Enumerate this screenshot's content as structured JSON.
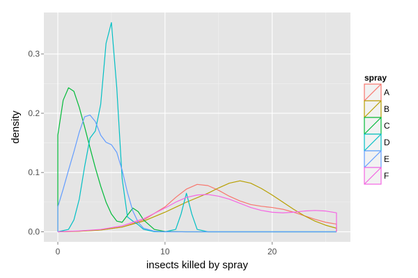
{
  "chart_data": {
    "type": "line",
    "subtype": "density",
    "xlabel": "insects killed by spray",
    "ylabel": "density",
    "xlim": [
      -1.3,
      27.3
    ],
    "ylim": [
      -0.017,
      0.37
    ],
    "x_ticks": [
      0,
      10,
      20
    ],
    "x_tick_labels": [
      "0",
      "10",
      "20"
    ],
    "y_ticks": [
      0.0,
      0.1,
      0.2,
      0.3
    ],
    "y_tick_labels": [
      "0.0",
      "0.1",
      "0.2",
      "0.3"
    ],
    "grid": true,
    "background": "#e5e5e5",
    "legend": {
      "title": "spray",
      "position": "right"
    },
    "series": [
      {
        "name": "A",
        "color": "#F8766D",
        "x": [
          0,
          2,
          4,
          6,
          8,
          10,
          11,
          12,
          13,
          14,
          15,
          16,
          17,
          18,
          19,
          20,
          21,
          22,
          23,
          24,
          25,
          26,
          26
        ],
        "y": [
          0,
          0.0012,
          0.003,
          0.008,
          0.02,
          0.042,
          0.058,
          0.072,
          0.08,
          0.078,
          0.07,
          0.06,
          0.052,
          0.046,
          0.043,
          0.041,
          0.038,
          0.033,
          0.027,
          0.021,
          0.016,
          0.013,
          0
        ]
      },
      {
        "name": "B",
        "color": "#B79F00",
        "x": [
          0,
          2,
          4,
          6,
          8,
          10,
          12,
          14,
          15,
          16,
          17,
          18,
          19,
          20,
          21,
          22,
          23,
          24,
          25,
          26,
          26
        ],
        "y": [
          0,
          0.0008,
          0.003,
          0.008,
          0.018,
          0.033,
          0.05,
          0.065,
          0.074,
          0.082,
          0.086,
          0.082,
          0.073,
          0.062,
          0.05,
          0.038,
          0.027,
          0.018,
          0.011,
          0.006,
          0
        ]
      },
      {
        "name": "C",
        "color": "#00BA38",
        "x": [
          0,
          0,
          0.5,
          1,
          1.5,
          2,
          2.5,
          3,
          3.5,
          4,
          4.5,
          5,
          5.5,
          6,
          6.5,
          7,
          7.5,
          8,
          9,
          10,
          12,
          15,
          20,
          26
        ],
        "y": [
          0,
          0.163,
          0.222,
          0.243,
          0.237,
          0.21,
          0.177,
          0.142,
          0.108,
          0.077,
          0.05,
          0.03,
          0.018,
          0.016,
          0.028,
          0.04,
          0.034,
          0.02,
          0.004,
          0.0005,
          0,
          0,
          0,
          0
        ]
      },
      {
        "name": "D",
        "color": "#00BFC4",
        "x": [
          0,
          1,
          1.5,
          2,
          2.5,
          3,
          3.5,
          4,
          4.5,
          5,
          5.5,
          6,
          6.5,
          7,
          7.5,
          8,
          9,
          10,
          11,
          11.5,
          12,
          12.5,
          13,
          14,
          16,
          20,
          26
        ],
        "y": [
          0,
          0.004,
          0.02,
          0.055,
          0.11,
          0.158,
          0.17,
          0.215,
          0.318,
          0.353,
          0.243,
          0.09,
          0.025,
          0.018,
          0.012,
          0.004,
          0.0003,
          0,
          0.004,
          0.03,
          0.065,
          0.03,
          0.004,
          0,
          0,
          0,
          0
        ]
      },
      {
        "name": "E",
        "color": "#619CFF",
        "x": [
          0,
          0,
          0.5,
          1,
          1.5,
          2,
          2.5,
          3,
          3.5,
          4,
          4.5,
          5,
          5.5,
          6,
          6.5,
          7,
          7.5,
          8,
          9,
          10,
          12,
          15,
          20,
          26
        ],
        "y": [
          0,
          0.042,
          0.072,
          0.104,
          0.135,
          0.168,
          0.194,
          0.197,
          0.186,
          0.163,
          0.151,
          0.147,
          0.134,
          0.104,
          0.066,
          0.035,
          0.016,
          0.006,
          0.001,
          0,
          0,
          0,
          0,
          0
        ]
      },
      {
        "name": "F",
        "color": "#F564E3",
        "x": [
          0,
          2,
          4,
          6,
          8,
          10,
          11,
          12,
          13,
          14,
          15,
          16,
          17,
          18,
          19,
          20,
          21,
          22,
          23,
          24,
          25,
          26,
          26
        ],
        "y": [
          0,
          0.0015,
          0.004,
          0.01,
          0.022,
          0.04,
          0.05,
          0.058,
          0.062,
          0.063,
          0.06,
          0.055,
          0.048,
          0.041,
          0.036,
          0.033,
          0.032,
          0.033,
          0.035,
          0.036,
          0.035,
          0.032,
          0
        ]
      }
    ]
  }
}
